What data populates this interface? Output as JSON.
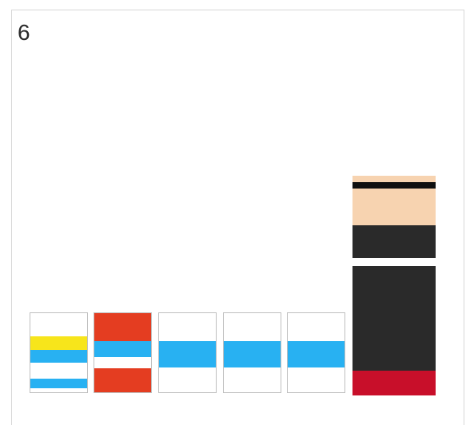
{
  "label": "6",
  "colors": {
    "white": "#ffffff",
    "yellow": "#f7e51b",
    "sky_blue": "#28b1f2",
    "red_orange": "#e43d21",
    "peach": "#f7d3b0",
    "black": "#101010",
    "charcoal": "#2a2a2a",
    "crimson": "#c80f2a"
  },
  "blocks": [
    {
      "name": "tile-1",
      "stripes_top_to_bottom": [
        "white",
        "yellow",
        "sky_blue",
        "white",
        "sky_blue",
        "white"
      ]
    },
    {
      "name": "tile-2",
      "stripes_top_to_bottom": [
        "red_orange",
        "sky_blue",
        "white",
        "red_orange"
      ]
    },
    {
      "name": "tile-3",
      "stripes_top_to_bottom": [
        "white",
        "sky_blue",
        "white"
      ]
    },
    {
      "name": "tile-4",
      "stripes_top_to_bottom": [
        "white",
        "sky_blue",
        "white"
      ]
    },
    {
      "name": "tile-5",
      "stripes_top_to_bottom": [
        "white",
        "sky_blue",
        "white"
      ]
    },
    {
      "name": "tall-block",
      "stripes_top_to_bottom": [
        "peach",
        "black",
        "peach",
        "charcoal",
        "white",
        "charcoal",
        "crimson"
      ]
    }
  ]
}
